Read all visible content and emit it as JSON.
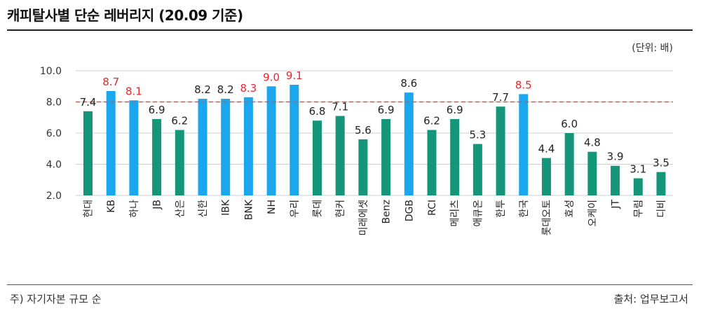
{
  "header": {
    "title": "캐피탈사별 단순 레버리지 (20.09 기준)",
    "unit": "(단위: 배)"
  },
  "footer": {
    "note": "주) 자기자본 규모 순",
    "source": "출처: 업무보고서"
  },
  "colors": {
    "green": "#15967a",
    "blue": "#1aa7ee",
    "label_red": "#e8262a",
    "label_black": "#222222",
    "reference_line": "#d9534f",
    "grid": "#cfcfcf"
  },
  "chart_data": {
    "type": "bar",
    "title": "캐피탈사별 단순 레버리지 (20.09 기준)",
    "xlabel": "",
    "ylabel": "",
    "ylim": [
      2.0,
      10.0
    ],
    "yticks": [
      "2.0",
      "4.0",
      "6.0",
      "8.0",
      "10.0"
    ],
    "grid": "horizontal",
    "reference_line": 8.0,
    "categories": [
      "현대",
      "KB",
      "하나",
      "JB",
      "산은",
      "신한",
      "IBK",
      "BNK",
      "NH",
      "우리",
      "롯데",
      "현커",
      "미래에셋",
      "Benz",
      "DGB",
      "RCI",
      "메리츠",
      "애큐온",
      "한투",
      "한국",
      "롯데오토",
      "효성",
      "오케이",
      "JT",
      "무림",
      "디비"
    ],
    "values": [
      7.4,
      8.7,
      8.1,
      6.9,
      6.2,
      8.2,
      8.2,
      8.3,
      9.0,
      9.1,
      6.8,
      7.1,
      5.6,
      6.9,
      8.6,
      6.2,
      6.9,
      5.3,
      7.7,
      8.5,
      4.4,
      6.0,
      4.8,
      3.9,
      3.1,
      3.5
    ],
    "value_labels": [
      "7.4",
      "8.7",
      "8.1",
      "6.9",
      "6.2",
      "8.2",
      "8.2",
      "8.3",
      "9.0",
      "9.1",
      "6.8",
      "7.1",
      "5.6",
      "6.9",
      "8.6",
      "6.2",
      "6.9",
      "5.3",
      "7.7",
      "8.5",
      "4.4",
      "6.0",
      "4.8",
      "3.9",
      "3.1",
      "3.5"
    ],
    "bar_colors": [
      "green",
      "blue",
      "blue",
      "green",
      "green",
      "blue",
      "blue",
      "blue",
      "blue",
      "blue",
      "green",
      "green",
      "green",
      "green",
      "blue",
      "green",
      "green",
      "green",
      "green",
      "blue",
      "green",
      "green",
      "green",
      "green",
      "green",
      "green"
    ],
    "label_colors": [
      "black",
      "red",
      "red",
      "black",
      "black",
      "black",
      "black",
      "red",
      "red",
      "red",
      "black",
      "black",
      "black",
      "black",
      "black",
      "black",
      "black",
      "black",
      "black",
      "red",
      "black",
      "black",
      "black",
      "black",
      "black",
      "black"
    ]
  }
}
